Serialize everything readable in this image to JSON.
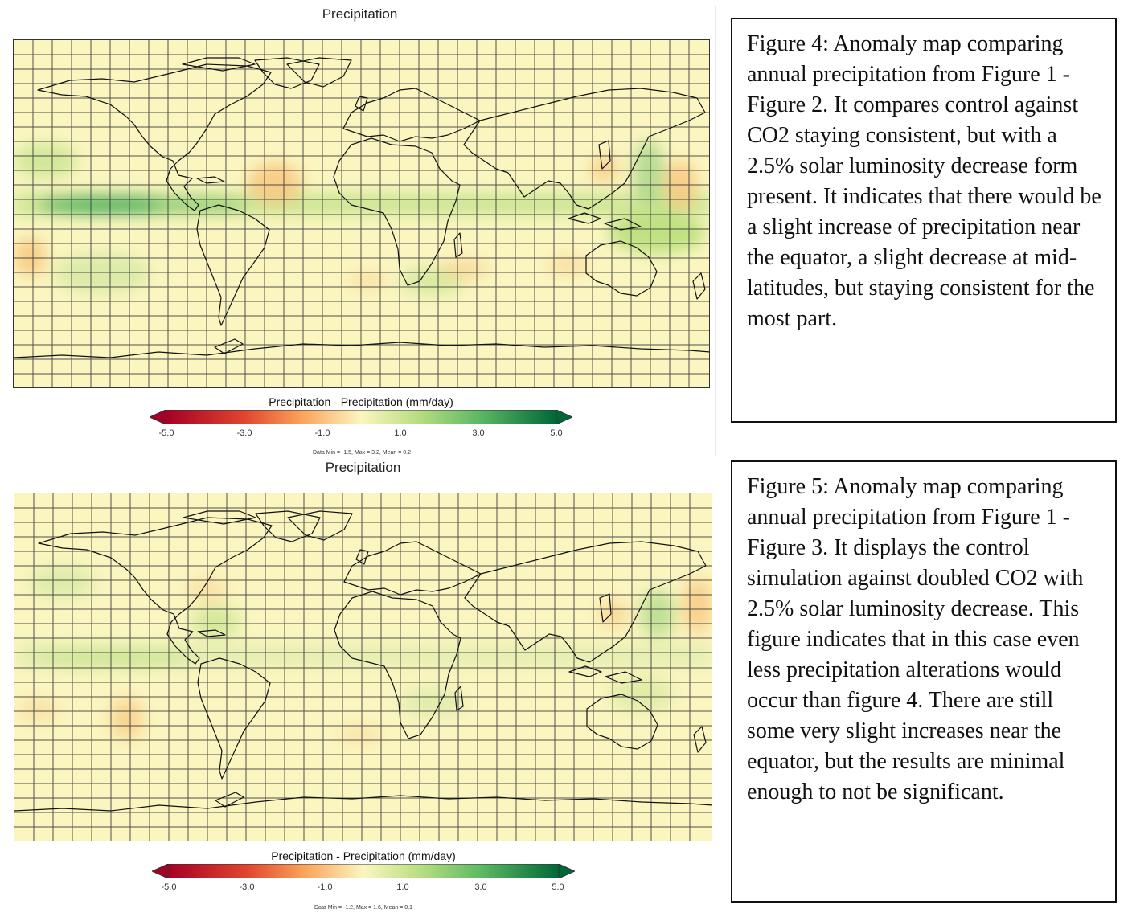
{
  "panels": [
    {
      "title": "Precipitation",
      "colorbar_title": "Precipitation - Precipitation (mm/day)",
      "ticks": [
        "-5.0",
        "-3.0",
        "-1.0",
        "1.0",
        "3.0",
        "5.0"
      ],
      "stats": "Data Min = -1.5, Max = 3.2, Mean = 0.2"
    },
    {
      "title": "Precipitation",
      "colorbar_title": "Precipitation - Precipitation (mm/day)",
      "ticks": [
        "-5.0",
        "-3.0",
        "-1.0",
        "1.0",
        "3.0",
        "5.0"
      ],
      "stats": "Data Min = -1.2, Max = 1.6, Mean = 0.1"
    }
  ],
  "captions": [
    "Figure 4: Anomaly map comparing annual precipitation from Figure 1 - Figure 2.  It compares control against CO2 staying consistent, but with a 2.5% solar luminosity decrease form present. It indicates that there would be a slight increase of precipitation near the equator, a slight decrease at mid-latitudes, but staying consistent for the most part.",
    "Figure 5: Anomaly map comparing annual precipitation from Figure 1 - Figure 3. It displays the control simulation against doubled CO2 with 2.5% solar luminosity decrease. This figure indicates that in this case even less precipitation alterations would occur than figure 4. There are still some very slight increases near the equator, but the results are minimal enough to not be significant."
  ],
  "colors": {
    "negative_strong": "#a50026",
    "negative_mid": "#f46d43",
    "neutral": "#fbf6c0",
    "positive_mid": "#a6d96a",
    "positive_strong": "#006837"
  }
}
